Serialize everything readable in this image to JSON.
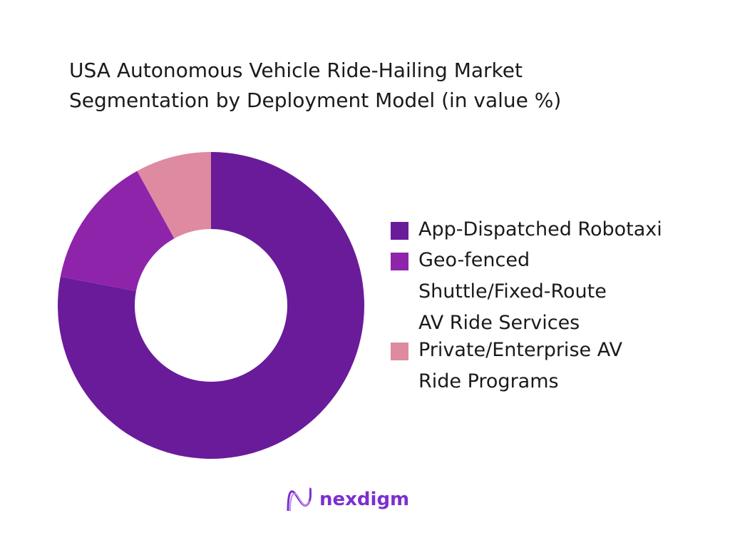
{
  "chart_data": {
    "type": "pie",
    "title": "USA Autonomous Vehicle Ride-Hailing Market Segmentation by Deployment Model (in value %)",
    "title_lines": [
      "USA Autonomous Vehicle Ride-Hailing Market",
      "Segmentation by Deployment Model (in value %)"
    ],
    "categories": [
      "App-Dispatched Robotaxi",
      "Geo-fenced Shuttle/Fixed-Route AV Ride Services",
      "Private/Enterprise AV Ride Programs"
    ],
    "legend_lines": [
      [
        "App-Dispatched Robotaxi"
      ],
      [
        "Geo-fenced",
        "Shuttle/Fixed-Route",
        "AV Ride Services"
      ],
      [
        "Private/Enterprise AV",
        "Ride Programs"
      ]
    ],
    "values": [
      78,
      14,
      8
    ],
    "colors": [
      "#6a1b9a",
      "#8e24aa",
      "#de8aa0"
    ],
    "donut": true,
    "legend_position": "right"
  },
  "brand": {
    "name": "nexdigm"
  }
}
